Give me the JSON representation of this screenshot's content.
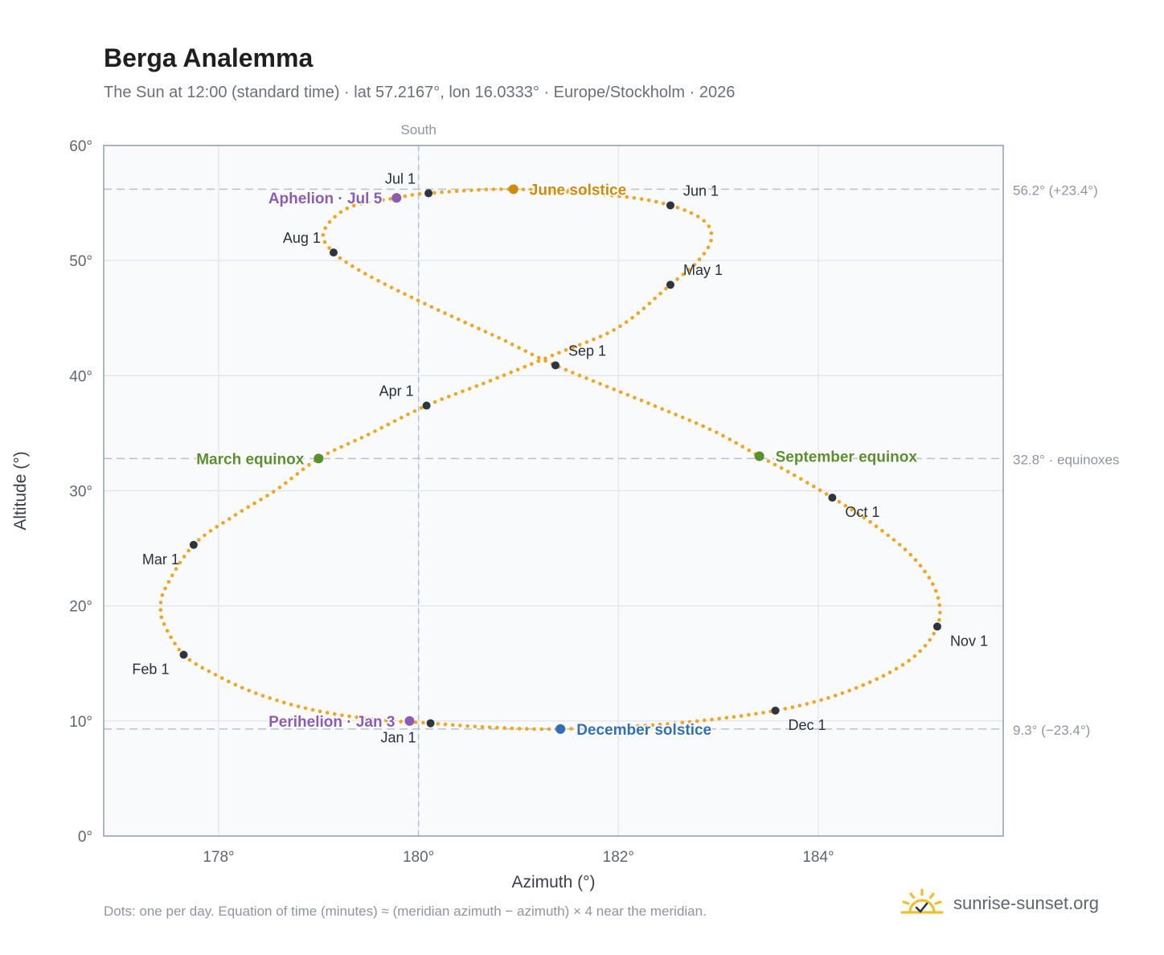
{
  "header": {
    "title": "Berga Analemma",
    "subtitle": "The Sun at 12:00 (standard time) · lat 57.2167°, lon 16.0333° · Europe/Stockholm · 2026"
  },
  "footer": {
    "note": "Dots: one per day. Equation of time (minutes) ≈ (meridian azimuth − azimuth) × 4 near the meridian.",
    "brand": "sunrise-sunset.org",
    "brand_icon": "sun-icon"
  },
  "colors": {
    "curve": "#f3a51c",
    "month_marker": "#2f3540",
    "aphelion": "#8a5cb6",
    "june_solstice": "#d08a0c",
    "december_solstice": "#2f6fba",
    "equinox": "#5a8f2e",
    "grid": "#e3e7ec",
    "plot_bg": "#f8fafc",
    "axis_frame": "#9aa4b2",
    "reference_line": "#b8c2cc",
    "brand_sun": "#f2bf2a"
  },
  "chart_data": {
    "type": "scatter",
    "xlabel": "Azimuth (°)",
    "ylabel": "Altitude (°)",
    "xlim": [
      176.85,
      185.85
    ],
    "ylim": [
      0,
      60
    ],
    "xticks": [
      178,
      180,
      182,
      184
    ],
    "yticks": [
      0,
      10,
      20,
      30,
      40,
      50,
      60
    ],
    "tick_suffix": "°",
    "grid": true,
    "meridian": {
      "azimuth": 180,
      "label": "South"
    },
    "reference_lines": [
      {
        "altitude": 56.2,
        "label": "56.2° (+23.4°)"
      },
      {
        "altitude": 32.8,
        "label": "32.8° · equinoxes"
      },
      {
        "altitude": 9.3,
        "label": "9.3° (−23.4°)"
      }
    ],
    "series": [
      {
        "type": "daily_dots",
        "points": [
          [
            180.12,
            9.8
          ],
          [
            179.56,
            10.13
          ],
          [
            178.95,
            10.95
          ],
          [
            178.39,
            12.35
          ],
          [
            177.95,
            14.1
          ],
          [
            177.65,
            15.75
          ],
          [
            177.46,
            18.3
          ],
          [
            177.42,
            19.8
          ],
          [
            177.47,
            21.6
          ],
          [
            177.75,
            25.3
          ],
          [
            178.15,
            27.8
          ],
          [
            178.58,
            30.1
          ],
          [
            179.0,
            32.8
          ],
          [
            179.5,
            34.9
          ],
          [
            180.08,
            37.4
          ],
          [
            180.7,
            39.5
          ],
          [
            181.35,
            41.8
          ],
          [
            182.0,
            44.2
          ],
          [
            182.52,
            47.9
          ],
          [
            182.8,
            50.0
          ],
          [
            182.93,
            51.9
          ],
          [
            182.85,
            53.5
          ],
          [
            182.52,
            54.8
          ],
          [
            182.0,
            55.6
          ],
          [
            180.95,
            56.2
          ],
          [
            180.1,
            55.85
          ],
          [
            179.78,
            55.45
          ],
          [
            179.3,
            54.6
          ],
          [
            179.05,
            52.5
          ],
          [
            179.15,
            50.7
          ],
          [
            179.5,
            48.7
          ],
          [
            180.1,
            46.1
          ],
          [
            180.8,
            43.3
          ],
          [
            181.37,
            40.9
          ],
          [
            182.3,
            37.6
          ],
          [
            182.95,
            35.2
          ],
          [
            183.41,
            33.0
          ],
          [
            183.75,
            31.4
          ],
          [
            184.14,
            29.4
          ],
          [
            184.55,
            27.1
          ],
          [
            184.95,
            24.2
          ],
          [
            185.18,
            21.2
          ],
          [
            185.19,
            18.2
          ],
          [
            184.9,
            15.2
          ],
          [
            184.3,
            12.6
          ],
          [
            183.57,
            10.9
          ],
          [
            182.5,
            9.75
          ],
          [
            181.42,
            9.3
          ],
          [
            180.7,
            9.45
          ],
          [
            180.12,
            9.8
          ]
        ]
      }
    ],
    "month_markers": [
      {
        "label": "Jan 1",
        "az": 180.12,
        "alt": 9.8,
        "pos": "below-left"
      },
      {
        "label": "Feb 1",
        "az": 177.65,
        "alt": 15.75,
        "pos": "below-left"
      },
      {
        "label": "Mar 1",
        "az": 177.75,
        "alt": 25.3,
        "pos": "below-left"
      },
      {
        "label": "Apr 1",
        "az": 180.08,
        "alt": 37.4,
        "pos": "above-left"
      },
      {
        "label": "May 1",
        "az": 182.52,
        "alt": 47.9,
        "pos": "above-right"
      },
      {
        "label": "Jun 1",
        "az": 182.52,
        "alt": 54.8,
        "pos": "above-right"
      },
      {
        "label": "Jul 1",
        "az": 180.1,
        "alt": 55.85,
        "pos": "above-left"
      },
      {
        "label": "Aug 1",
        "az": 179.15,
        "alt": 50.7,
        "pos": "above-left"
      },
      {
        "label": "Sep 1",
        "az": 181.37,
        "alt": 40.9,
        "pos": "above-right"
      },
      {
        "label": "Oct 1",
        "az": 184.14,
        "alt": 29.4,
        "pos": "below-right"
      },
      {
        "label": "Nov 1",
        "az": 185.19,
        "alt": 18.2,
        "pos": "below-right"
      },
      {
        "label": "Dec 1",
        "az": 183.57,
        "alt": 10.9,
        "pos": "below-right"
      }
    ],
    "events": [
      {
        "label": "Aphelion · Jul 5",
        "az": 179.78,
        "alt": 55.45,
        "color_key": "aphelion",
        "side": "left"
      },
      {
        "label": "June solstice",
        "az": 180.95,
        "alt": 56.2,
        "color_key": "june_solstice",
        "side": "right"
      },
      {
        "label": "March equinox",
        "az": 179.0,
        "alt": 32.8,
        "color_key": "equinox",
        "side": "left"
      },
      {
        "label": "September equinox",
        "az": 183.41,
        "alt": 33.0,
        "color_key": "equinox",
        "side": "right"
      },
      {
        "label": "Perihelion · Jan 3",
        "az": 179.91,
        "alt": 10.0,
        "color_key": "aphelion",
        "side": "left"
      },
      {
        "label": "December solstice",
        "az": 181.42,
        "alt": 9.3,
        "color_key": "december_solstice",
        "side": "right"
      }
    ]
  }
}
